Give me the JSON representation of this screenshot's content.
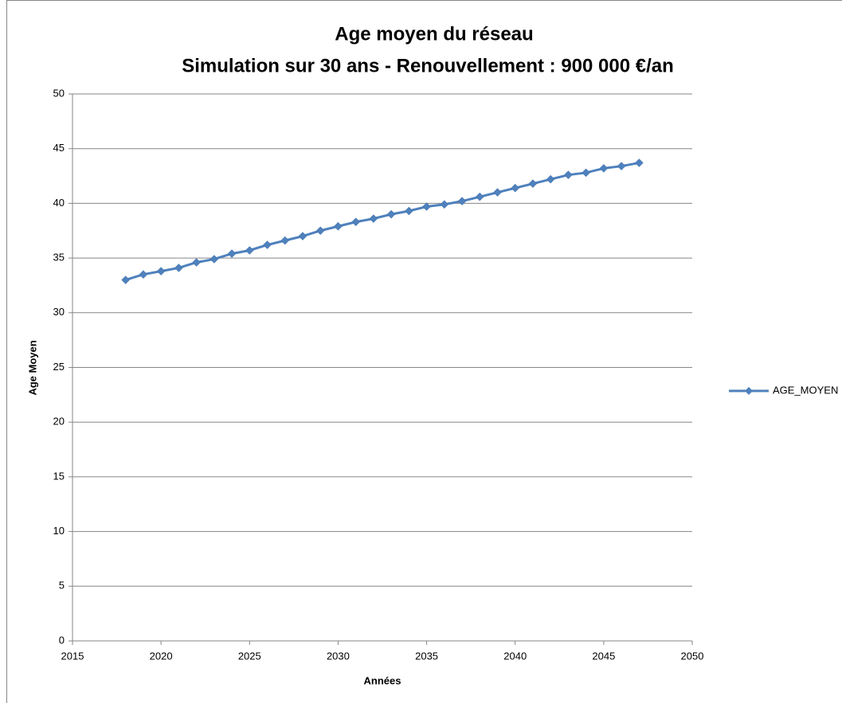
{
  "chart_data": {
    "type": "line",
    "title": "Age moyen du réseau",
    "subtitle": "Simulation sur 30 ans - Renouvellement : 900 000 €/an",
    "x_label": "Années",
    "y_label": "Age Moyen",
    "x": [
      2018,
      2019,
      2020,
      2021,
      2022,
      2023,
      2024,
      2025,
      2026,
      2027,
      2028,
      2029,
      2030,
      2031,
      2032,
      2033,
      2034,
      2035,
      2036,
      2037,
      2038,
      2039,
      2040,
      2041,
      2042,
      2043,
      2044,
      2045,
      2046,
      2047
    ],
    "series": [
      {
        "name": "AGE_MOYEN",
        "color": "#4f81bd",
        "values": [
          33.0,
          33.5,
          33.8,
          34.1,
          34.6,
          34.9,
          35.4,
          35.7,
          36.2,
          36.6,
          37.0,
          37.5,
          37.9,
          38.3,
          38.6,
          39.0,
          39.3,
          39.7,
          39.9,
          40.2,
          40.6,
          41.0,
          41.4,
          41.8,
          42.2,
          42.6,
          42.8,
          43.2,
          43.4,
          43.7
        ]
      }
    ],
    "xlim": [
      2015,
      2050
    ],
    "xticks": [
      2015,
      2020,
      2025,
      2030,
      2035,
      2040,
      2045,
      2050
    ],
    "ylim": [
      0,
      50
    ],
    "yticks": [
      0,
      5,
      10,
      15,
      20,
      25,
      30,
      35,
      40,
      45,
      50
    ],
    "grid": true,
    "legend": "right"
  }
}
